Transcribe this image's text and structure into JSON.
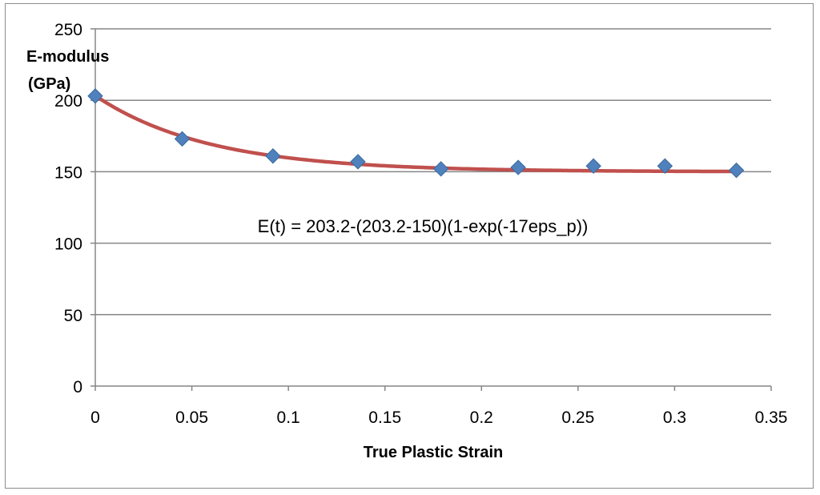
{
  "chart_data": {
    "type": "scatter",
    "ylabel_lines": [
      "E-modulus",
      "(GPa)"
    ],
    "xlabel": "True Plastic Strain",
    "annotation": "E(t) = 203.2-(203.2-150)(1-exp(-17eps_p))",
    "xlim": [
      0,
      0.35
    ],
    "ylim": [
      0,
      250
    ],
    "x_ticks": [
      0,
      0.05,
      0.1,
      0.15,
      0.2,
      0.25,
      0.3,
      0.35
    ],
    "x_tick_labels": [
      "0",
      "0.05",
      "0.1",
      "0.15",
      "0.2",
      "0.25",
      "0.3",
      "0.35"
    ],
    "y_ticks": [
      0,
      50,
      100,
      150,
      200,
      250
    ],
    "y_tick_labels": [
      "0",
      "50",
      "100",
      "150",
      "200",
      "250"
    ],
    "grid": "horizontal",
    "series": [
      {
        "kind": "markers",
        "marker": "diamond",
        "color": "#4f81bd",
        "x": [
          0,
          0.045,
          0.092,
          0.136,
          0.179,
          0.219,
          0.258,
          0.295,
          0.332
        ],
        "y": [
          203,
          173,
          161,
          157,
          152,
          153,
          154,
          154,
          151
        ]
      },
      {
        "kind": "fit",
        "color": "#c0504d",
        "formula": {
          "e0": 203.2,
          "einf": 150,
          "k": 17
        },
        "x_range": [
          0,
          0.332
        ]
      }
    ]
  }
}
